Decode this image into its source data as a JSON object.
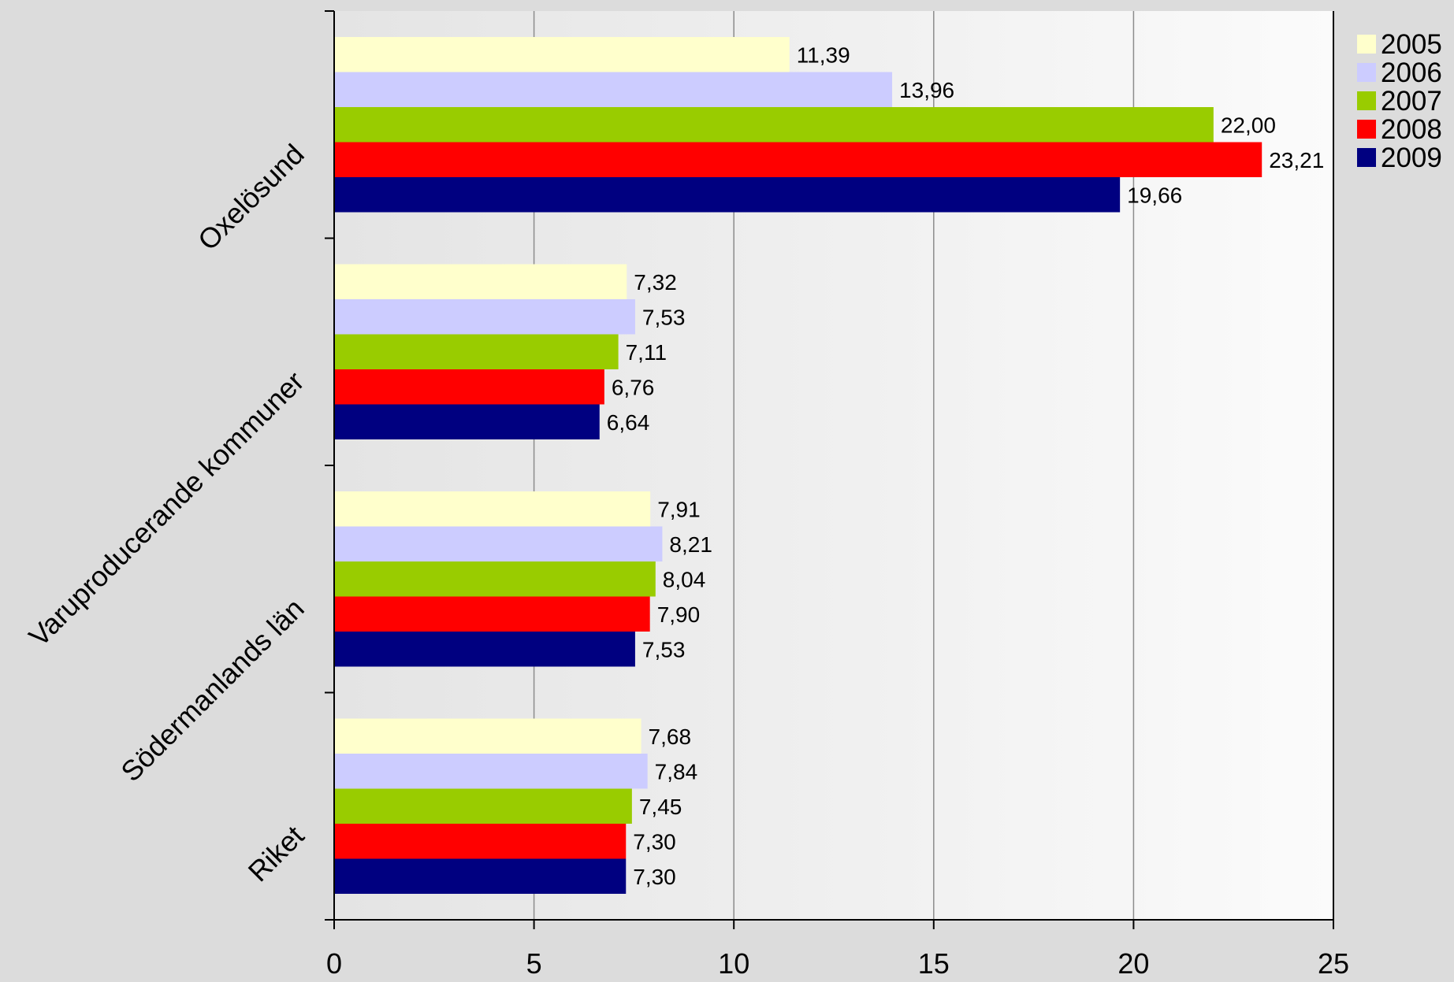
{
  "chart_data": {
    "type": "bar",
    "orientation": "horizontal",
    "categories": [
      "Oxelösund",
      "Varuproducerande kommuner",
      "Södermanlands län",
      "Riket"
    ],
    "series": [
      {
        "name": "2005",
        "color": "#ffffcc",
        "values": [
          11.39,
          7.32,
          7.91,
          7.68
        ],
        "labels": [
          "11,39",
          "7,32",
          "7,91",
          "7,68"
        ]
      },
      {
        "name": "2006",
        "color": "#ccccff",
        "values": [
          13.96,
          7.53,
          8.21,
          7.84
        ],
        "labels": [
          "13,96",
          "7,53",
          "8,21",
          "7,84"
        ]
      },
      {
        "name": "2007",
        "color": "#99cc00",
        "values": [
          22.0,
          7.11,
          8.04,
          7.45
        ],
        "labels": [
          "22,00",
          "7,11",
          "8,04",
          "7,45"
        ]
      },
      {
        "name": "2008",
        "color": "#ff0000",
        "values": [
          23.21,
          6.76,
          7.9,
          7.3
        ],
        "labels": [
          "23,21",
          "6,76",
          "7,90",
          "7,30"
        ]
      },
      {
        "name": "2009",
        "color": "#000080",
        "values": [
          19.66,
          6.64,
          7.53,
          7.3
        ],
        "labels": [
          "19,66",
          "6,64",
          "7,53",
          "7,30"
        ]
      }
    ],
    "xlim": [
      0,
      25
    ],
    "xticks": [
      0,
      5,
      10,
      15,
      20,
      25
    ],
    "grid": true,
    "legend_position": "top-right",
    "title": "",
    "xlabel": "",
    "ylabel": ""
  }
}
